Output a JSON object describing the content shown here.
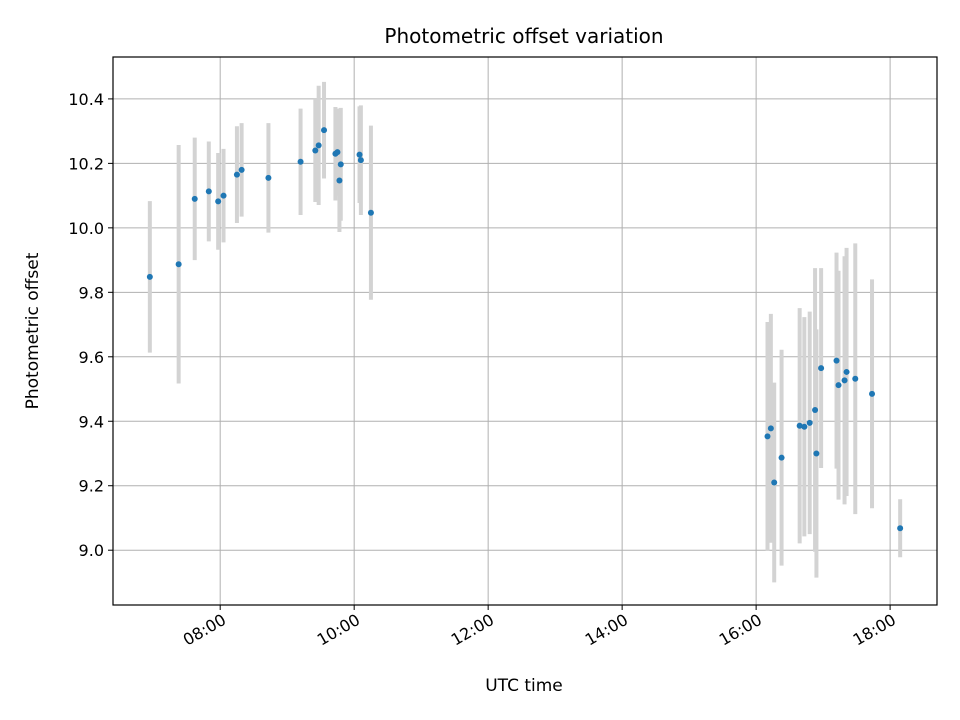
{
  "chart_data": {
    "type": "scatter",
    "title": "Photometric offset variation",
    "xlabel": "UTC time",
    "ylabel": "Photometric offset",
    "x_unit": "hours UTC",
    "xlim": [
      6.4,
      18.7
    ],
    "ylim": [
      8.83,
      10.53
    ],
    "xticks": [
      8,
      10,
      12,
      14,
      16,
      18
    ],
    "xtick_labels": [
      "08:00",
      "10:00",
      "12:00",
      "14:00",
      "16:00",
      "18:00"
    ],
    "yticks": [
      9.0,
      9.2,
      9.4,
      9.6,
      9.8,
      10.0,
      10.2,
      10.4
    ],
    "ytick_labels": [
      "9.0",
      "9.2",
      "9.4",
      "9.6",
      "9.8",
      "10.0",
      "10.2",
      "10.4"
    ],
    "grid": true,
    "marker_color": "#1f77b4",
    "errorbar_color": "#d3d3d3",
    "points": [
      {
        "x": 6.95,
        "y": 9.848,
        "err": 0.235
      },
      {
        "x": 7.38,
        "y": 9.887,
        "err": 0.37
      },
      {
        "x": 7.62,
        "y": 10.09,
        "err": 0.19
      },
      {
        "x": 7.83,
        "y": 10.113,
        "err": 0.155
      },
      {
        "x": 7.97,
        "y": 10.082,
        "err": 0.15
      },
      {
        "x": 8.05,
        "y": 10.1,
        "err": 0.145
      },
      {
        "x": 8.25,
        "y": 10.165,
        "err": 0.15
      },
      {
        "x": 8.32,
        "y": 10.18,
        "err": 0.145
      },
      {
        "x": 8.72,
        "y": 10.155,
        "err": 0.17
      },
      {
        "x": 9.2,
        "y": 10.205,
        "err": 0.165
      },
      {
        "x": 9.42,
        "y": 10.24,
        "err": 0.16
      },
      {
        "x": 9.47,
        "y": 10.256,
        "err": 0.185
      },
      {
        "x": 9.55,
        "y": 10.303,
        "err": 0.15
      },
      {
        "x": 9.72,
        "y": 10.23,
        "err": 0.145
      },
      {
        "x": 9.75,
        "y": 10.235,
        "err": 0.135
      },
      {
        "x": 9.78,
        "y": 10.147,
        "err": 0.16
      },
      {
        "x": 9.8,
        "y": 10.197,
        "err": 0.175
      },
      {
        "x": 10.08,
        "y": 10.227,
        "err": 0.15
      },
      {
        "x": 10.1,
        "y": 10.21,
        "err": 0.17
      },
      {
        "x": 10.25,
        "y": 10.047,
        "err": 0.27
      },
      {
        "x": 16.17,
        "y": 9.353,
        "err": 0.355
      },
      {
        "x": 16.22,
        "y": 9.378,
        "err": 0.355
      },
      {
        "x": 16.27,
        "y": 9.21,
        "err": 0.31
      },
      {
        "x": 16.38,
        "y": 9.287,
        "err": 0.335
      },
      {
        "x": 16.65,
        "y": 9.386,
        "err": 0.365
      },
      {
        "x": 16.72,
        "y": 9.383,
        "err": 0.34
      },
      {
        "x": 16.8,
        "y": 9.395,
        "err": 0.345
      },
      {
        "x": 16.88,
        "y": 9.435,
        "err": 0.44
      },
      {
        "x": 16.9,
        "y": 9.3,
        "err": 0.385
      },
      {
        "x": 16.97,
        "y": 9.565,
        "err": 0.31
      },
      {
        "x": 17.2,
        "y": 9.588,
        "err": 0.335
      },
      {
        "x": 17.23,
        "y": 9.512,
        "err": 0.355
      },
      {
        "x": 17.32,
        "y": 9.527,
        "err": 0.385
      },
      {
        "x": 17.35,
        "y": 9.553,
        "err": 0.385
      },
      {
        "x": 17.48,
        "y": 9.532,
        "err": 0.42
      },
      {
        "x": 17.73,
        "y": 9.485,
        "err": 0.355
      },
      {
        "x": 18.15,
        "y": 9.068,
        "err": 0.09
      }
    ]
  }
}
